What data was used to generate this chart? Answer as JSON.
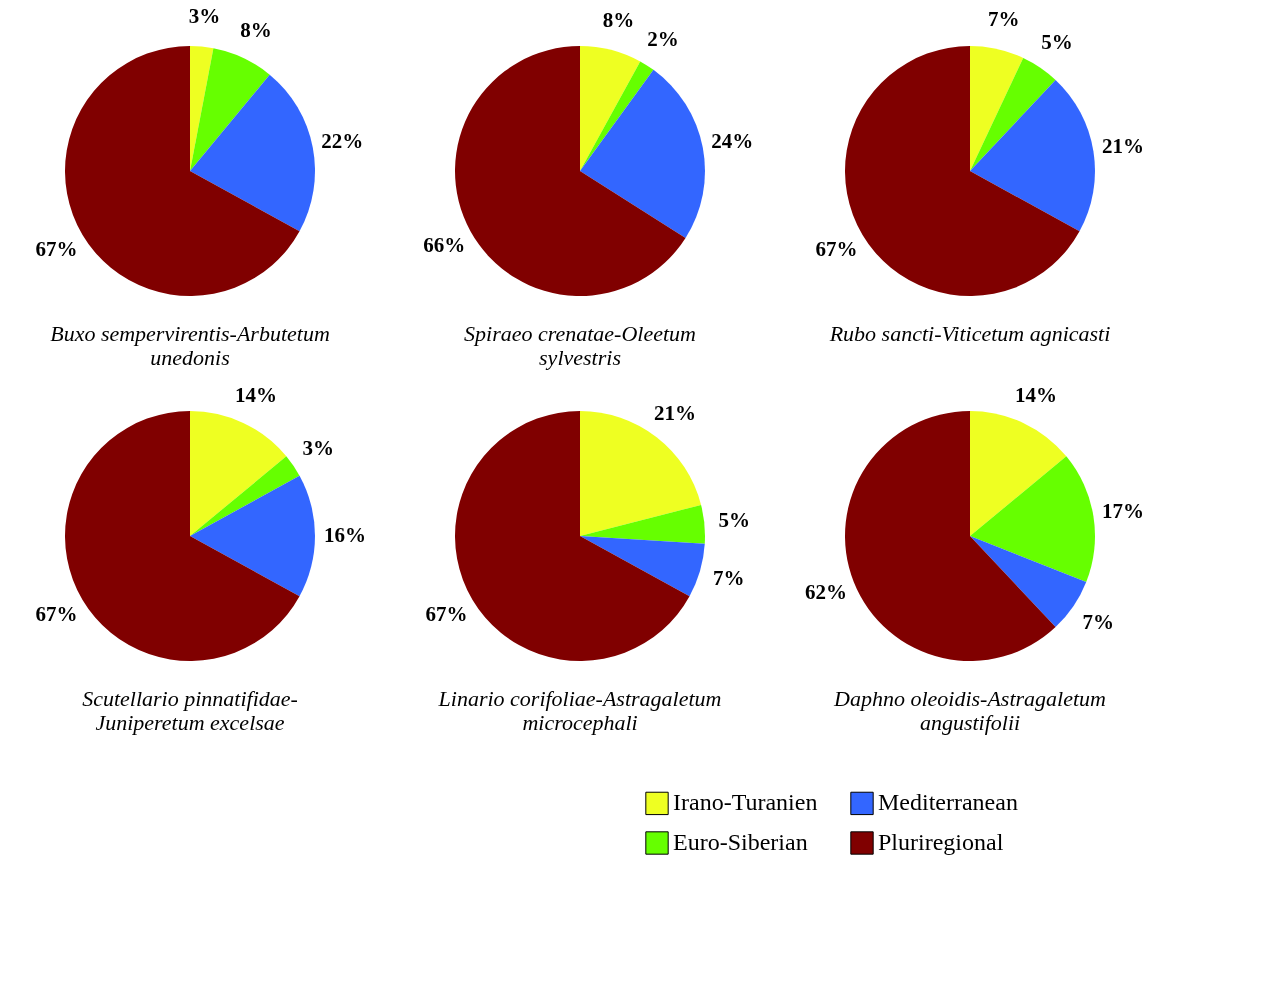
{
  "chart_data": [
    {
      "type": "pie",
      "title": "Buxo sempervirentis-Arbutetum unedonis",
      "categories": [
        "Irano-Turanien",
        "Euro-Siberian",
        "Mediterranean",
        "Pluriregional"
      ],
      "values": [
        3,
        8,
        22,
        67
      ],
      "value_labels": [
        "3%",
        "8%",
        "22%",
        "67%"
      ],
      "colors": [
        "#eeff22",
        "#66ff00",
        "#3366ff",
        "#800000"
      ],
      "legend": "bottom right"
    },
    {
      "type": "pie",
      "title": "Spiraeo crenatae-Oleetum sylvestris",
      "values": [
        8,
        2,
        24,
        66
      ],
      "value_labels": [
        "8%",
        "2%",
        "24%",
        "66%"
      ],
      "colors": [
        "#eeff22",
        "#66ff00",
        "#3366ff",
        "#800000"
      ]
    },
    {
      "type": "pie",
      "title": "Rubo sancti-Viticetum agnicasti",
      "values": [
        7,
        5,
        21,
        67
      ],
      "value_labels": [
        "7%",
        "5%",
        "21%",
        "67%"
      ],
      "colors": [
        "#eeff22",
        "#66ff00",
        "#3366ff",
        "#800000"
      ]
    },
    {
      "type": "pie",
      "title": "Scutellario pinnatifidae-Juniperetum excelsae",
      "values": [
        14,
        3,
        16,
        67
      ],
      "value_labels": [
        "14%",
        "3%",
        "16%",
        "67%"
      ],
      "colors": [
        "#eeff22",
        "#66ff00",
        "#3366ff",
        "#800000"
      ]
    },
    {
      "type": "pie",
      "title": "Linario corifoliae-Astragaletum microcephali",
      "values": [
        21,
        5,
        7,
        67
      ],
      "value_labels": [
        "21%",
        "5%",
        "7%",
        "67%"
      ],
      "colors": [
        "#eeff22",
        "#66ff00",
        "#3366ff",
        "#800000"
      ]
    },
    {
      "type": "pie",
      "title": "Daphno oleoidis-Astragaletum angustifolii",
      "values": [
        14,
        17,
        7,
        62
      ],
      "value_labels": [
        "14%",
        "17%",
        "7%",
        "62%"
      ],
      "colors": [
        "#eeff22",
        "#66ff00",
        "#3366ff",
        "#800000"
      ]
    }
  ]
}
